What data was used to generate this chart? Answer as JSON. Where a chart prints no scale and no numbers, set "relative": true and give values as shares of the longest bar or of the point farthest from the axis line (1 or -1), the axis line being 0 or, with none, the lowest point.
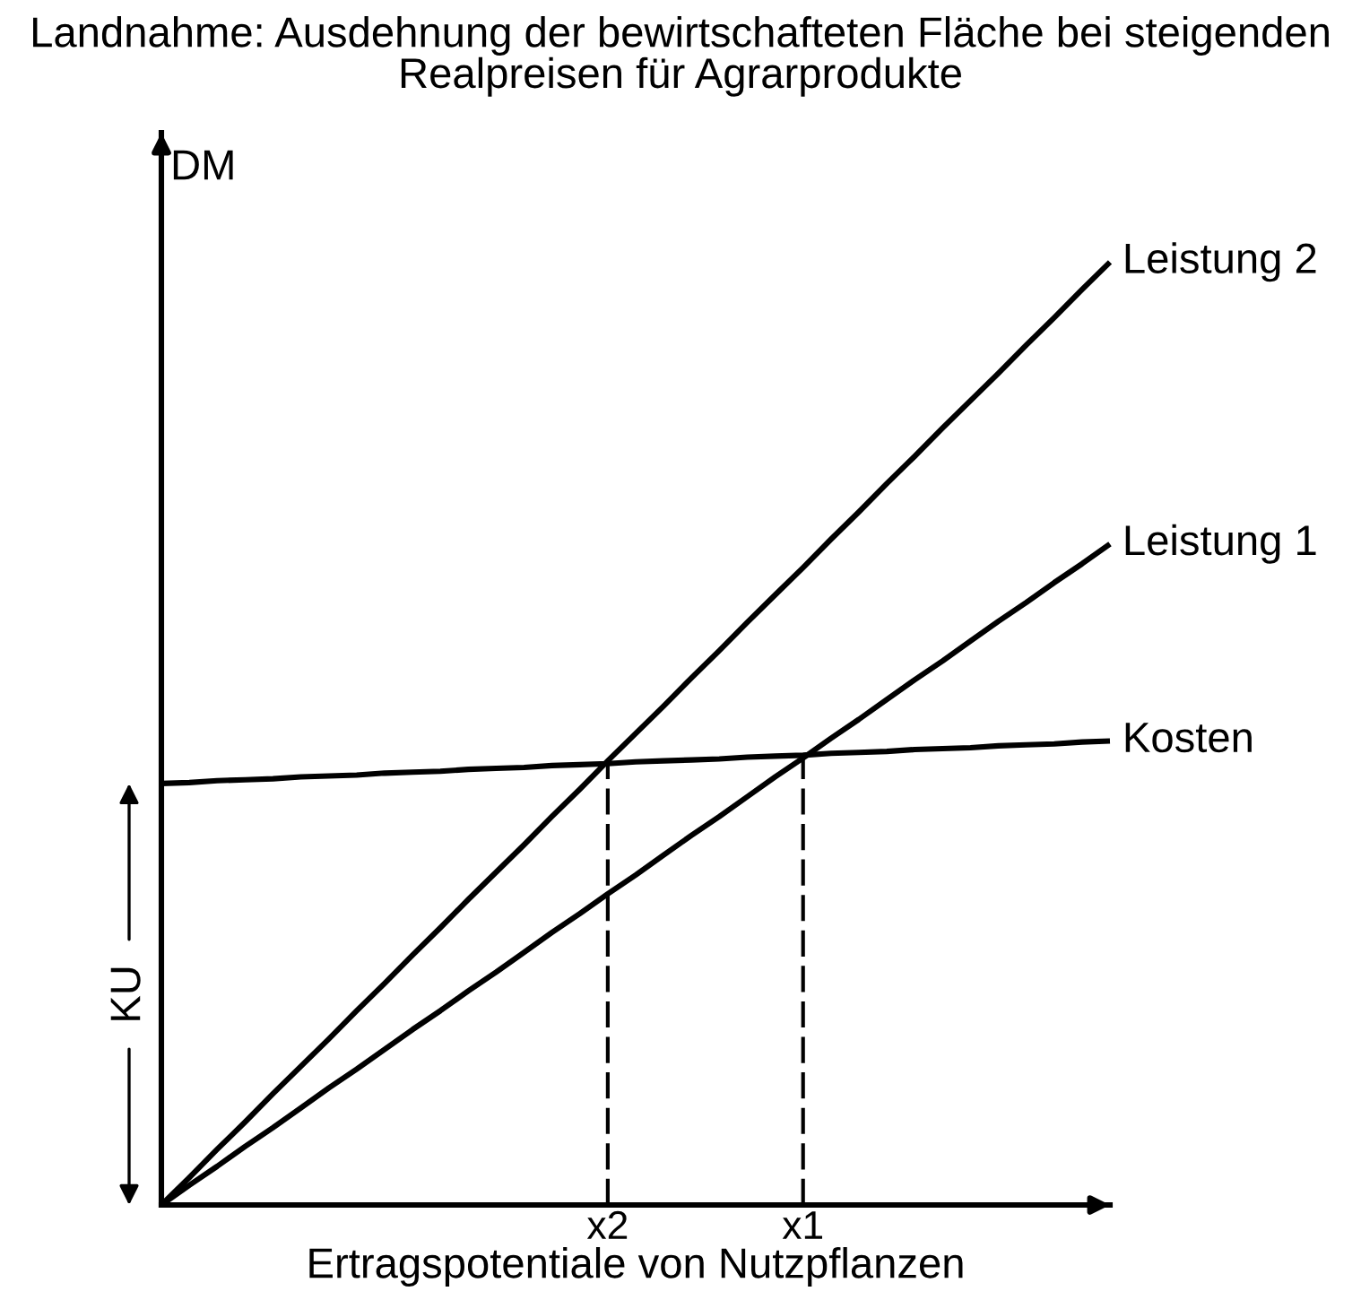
{
  "chart_data": {
    "type": "line",
    "relative": true,
    "line_style": "solid",
    "tick_labels": "x",
    "title": "Landnahme: Ausdehnung der bewirtschafteten Fläche bei steigenden Realpreisen für Agrarprodukte",
    "xlabel": "Ertragspotentiale von Nutzpflanzen",
    "ylabel": "DM",
    "categories": [
      null,
      null,
      null,
      null,
      null,
      null,
      null,
      null,
      null,
      null,
      null,
      null,
      null,
      null,
      null,
      null,
      "x2",
      null,
      null,
      null,
      null,
      null,
      null,
      "x1",
      null,
      null,
      null,
      null,
      null,
      null,
      null,
      null,
      null,
      null,
      null
    ],
    "series": [
      {
        "name": "Leistung 2",
        "color": "#000000",
        "values": [
          0,
          0.029,
          0.059,
          0.088,
          0.118,
          0.147,
          0.176,
          0.206,
          0.235,
          0.265,
          0.294,
          0.324,
          0.353,
          0.382,
          0.412,
          0.441,
          0.471,
          0.5,
          0.529,
          0.559,
          0.588,
          0.618,
          0.647,
          0.676,
          0.706,
          0.735,
          0.765,
          0.794,
          0.824,
          0.853,
          0.882,
          0.912,
          0.941,
          0.971,
          1
        ]
      },
      {
        "name": "Leistung 1",
        "color": "#000000",
        "values": [
          0,
          0.021,
          0.041,
          0.062,
          0.082,
          0.103,
          0.124,
          0.144,
          0.165,
          0.186,
          0.206,
          0.227,
          0.247,
          0.268,
          0.289,
          0.309,
          0.33,
          0.35,
          0.371,
          0.392,
          0.412,
          0.433,
          0.454,
          0.474,
          0.495,
          0.515,
          0.536,
          0.557,
          0.577,
          0.598,
          0.619,
          0.639,
          0.66,
          0.68,
          0.701
        ]
      },
      {
        "name": "Kosten",
        "color": "#000000",
        "values": [
          0.447,
          0.448,
          0.45,
          0.451,
          0.452,
          0.454,
          0.455,
          0.456,
          0.458,
          0.459,
          0.46,
          0.462,
          0.463,
          0.464,
          0.466,
          0.467,
          0.468,
          0.47,
          0.471,
          0.472,
          0.473,
          0.475,
          0.476,
          0.477,
          0.479,
          0.48,
          0.481,
          0.483,
          0.484,
          0.485,
          0.487,
          0.488,
          0.489,
          0.491,
          0.492
        ]
      },
      {
        "color": "#000000",
        "x": [
          "x2",
          "x2"
        ],
        "values": [
          0,
          0.468
        ],
        "line_style": "dashed"
      },
      {
        "color": "#000000",
        "x": [
          "x1",
          "x1"
        ],
        "values": [
          0,
          0.477
        ],
        "line_style": "dashed"
      }
    ],
    "annotations": [
      "KU"
    ]
  }
}
